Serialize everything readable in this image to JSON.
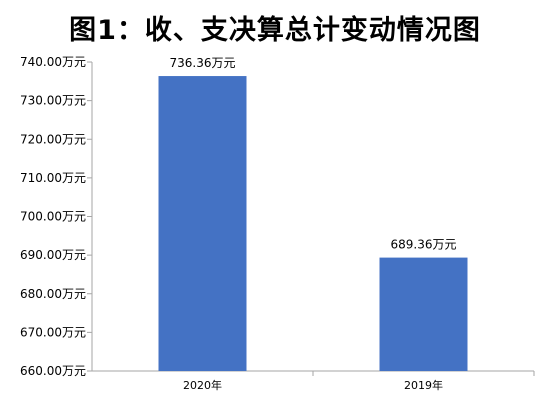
{
  "chart_data": {
    "type": "bar",
    "title": "图1：收、支决算总计变动情况图",
    "categories": [
      "2020年",
      "2019年"
    ],
    "values": [
      736.36,
      689.36
    ],
    "data_labels": [
      "736.36万元",
      "689.36万元"
    ],
    "ylim": [
      660,
      740
    ],
    "yticks": [
      "660.00万元",
      "670.00万元",
      "680.00万元",
      "690.00万元",
      "700.00万元",
      "710.00万元",
      "720.00万元",
      "730.00万元",
      "740.00万元"
    ],
    "xlabel": "",
    "ylabel": "",
    "grid": false,
    "legend": "none",
    "bar_color": "#4472C4"
  }
}
